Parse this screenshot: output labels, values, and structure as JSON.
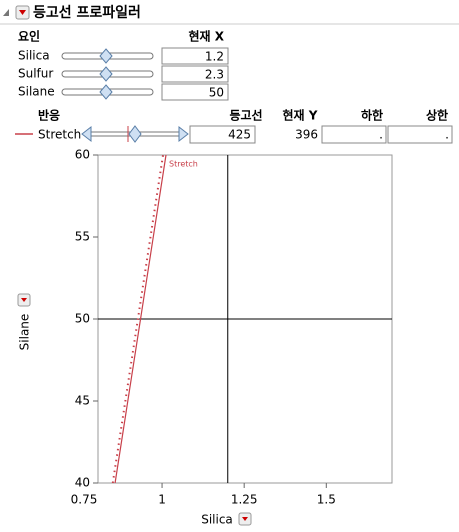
{
  "header": {
    "title": "등고선 프로파일러"
  },
  "factors": {
    "headers": [
      "요인",
      "현재 X"
    ],
    "rows": [
      [
        "Silica",
        "1.2"
      ],
      [
        "Sulfur",
        "2.3"
      ],
      [
        "Silane",
        "50"
      ]
    ]
  },
  "responses": {
    "headers": [
      "반응",
      "등고선",
      "현재 Y",
      "하한",
      "상한"
    ],
    "rows": [
      [
        "Stretch",
        "425",
        "396",
        ".",
        "."
      ]
    ]
  },
  "chart_data": {
    "type": "contour",
    "xlabel": "Silica",
    "ylabel": "Silane",
    "xlim": [
      0.805,
      1.7
    ],
    "ylim": [
      40,
      60
    ],
    "xticks": [
      0.75,
      1,
      1.25,
      1.5
    ],
    "yticks": [
      40,
      45,
      50,
      55,
      60
    ],
    "crosshair": {
      "x": 1.2,
      "y": 50
    },
    "series": [
      {
        "name": "Stretch",
        "color": "#c8404a",
        "x": [
          0.857,
          1.012
        ],
        "y": [
          40,
          60
        ]
      },
      {
        "color": "#c8404a",
        "dotted": true,
        "x": [
          0.85,
          1.003
        ],
        "y": [
          40,
          60
        ]
      }
    ]
  }
}
